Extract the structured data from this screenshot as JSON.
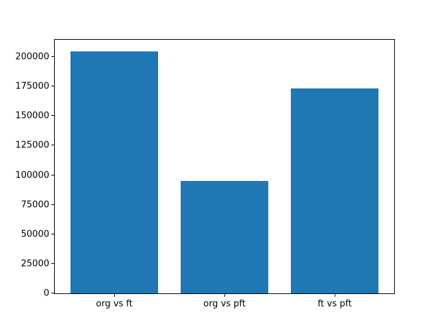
{
  "chart_data": {
    "type": "bar",
    "categories": [
      "org vs ft",
      "org vs pft",
      "ft vs pft"
    ],
    "values": [
      204600,
      95000,
      173300
    ],
    "title": "",
    "xlabel": "",
    "ylabel": "",
    "yticks": [
      0,
      25000,
      50000,
      75000,
      100000,
      125000,
      150000,
      175000,
      200000
    ],
    "ylim": [
      0,
      214500
    ],
    "x": [
      0,
      1,
      2
    ],
    "xlim": [
      -0.54,
      2.54
    ],
    "bar_width": 0.8,
    "bar_color": "#1f77b4",
    "background_color": "#ffffff",
    "spine_color": "#000000",
    "grid": false,
    "legend": null
  }
}
